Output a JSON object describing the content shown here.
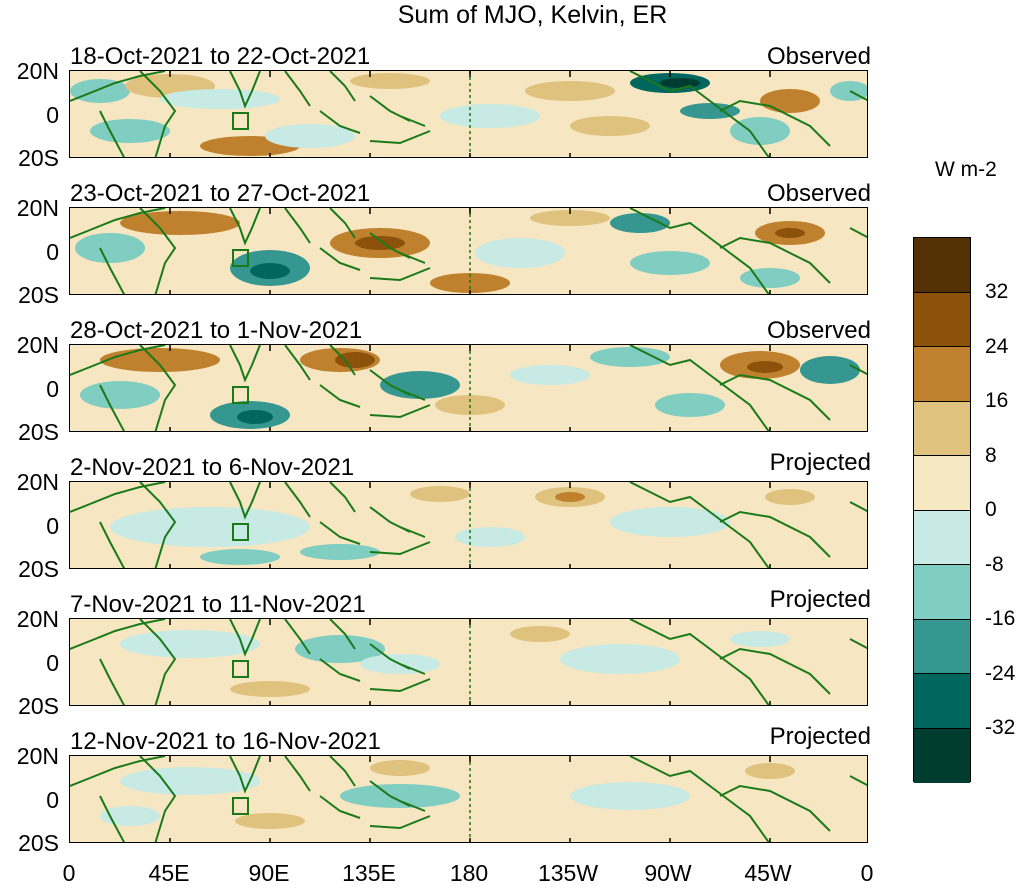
{
  "title": "Sum of MJO, Kelvin, ER",
  "units": "W m-2",
  "lat_labels": [
    "20N",
    "0",
    "20S"
  ],
  "lon_labels": [
    "0",
    "45E",
    "90E",
    "135E",
    "180",
    "135W",
    "90W",
    "45W",
    "0"
  ],
  "panels": [
    {
      "date": "18-Oct-2021 to 22-Oct-2021",
      "status": "Observed"
    },
    {
      "date": "23-Oct-2021 to 27-Oct-2021",
      "status": "Observed"
    },
    {
      "date": "28-Oct-2021 to 1-Nov-2021",
      "status": "Observed"
    },
    {
      "date": "2-Nov-2021 to 6-Nov-2021",
      "status": "Projected"
    },
    {
      "date": "7-Nov-2021 to 11-Nov-2021",
      "status": "Projected"
    },
    {
      "date": "12-Nov-2021 to 16-Nov-2021",
      "status": "Projected"
    }
  ],
  "colorbar": {
    "labels": [
      "32",
      "24",
      "16",
      "8",
      "0",
      "-8",
      "-16",
      "-24",
      "-32"
    ],
    "colors": [
      "#543005",
      "#8c510a",
      "#bf812d",
      "#dfc27d",
      "#f6e8c3",
      "#c7eae5",
      "#80cdc1",
      "#35978f",
      "#01665e",
      "#003c30"
    ]
  },
  "land_color": "#1a7a1a"
}
